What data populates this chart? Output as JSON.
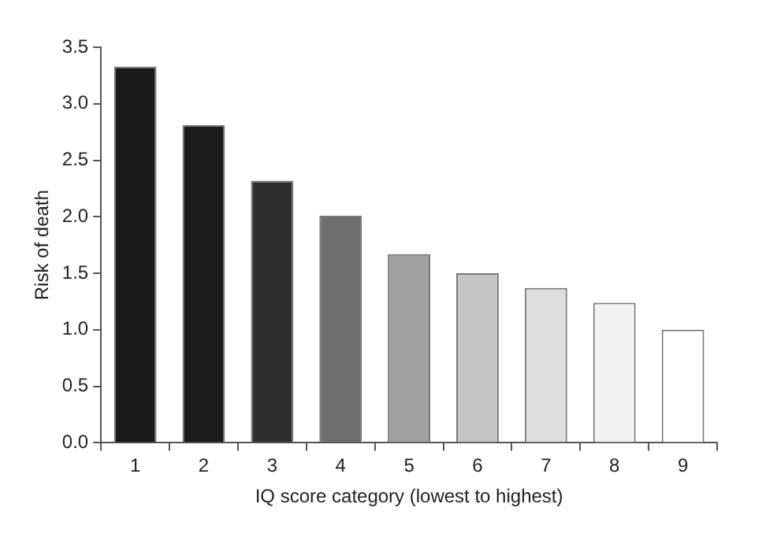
{
  "chart_data": {
    "type": "bar",
    "xlabel": "IQ score category (lowest to highest)",
    "ylabel": "Risk of death",
    "categories": [
      "1",
      "2",
      "3",
      "4",
      "5",
      "6",
      "7",
      "8",
      "9"
    ],
    "values": [
      3.33,
      2.81,
      2.32,
      2.01,
      1.67,
      1.5,
      1.37,
      1.24,
      1.0
    ],
    "colors": [
      "#1a1a1a",
      "#1c1c1c",
      "#2e2e2e",
      "#6e6e6e",
      "#a0a0a0",
      "#c4c4c4",
      "#dedede",
      "#f2f2f2",
      "#ffffff"
    ],
    "ylim": [
      0,
      3.5
    ],
    "yticks": [
      {
        "value": 0,
        "label": "0.0"
      },
      0.5,
      {
        "value": 1,
        "label": "1.0"
      },
      1.5,
      {
        "value": 2,
        "label": "2.0"
      },
      2.5,
      {
        "value": 3,
        "label": "3.0"
      },
      3.5
    ],
    "grid": false,
    "legend": false
  }
}
